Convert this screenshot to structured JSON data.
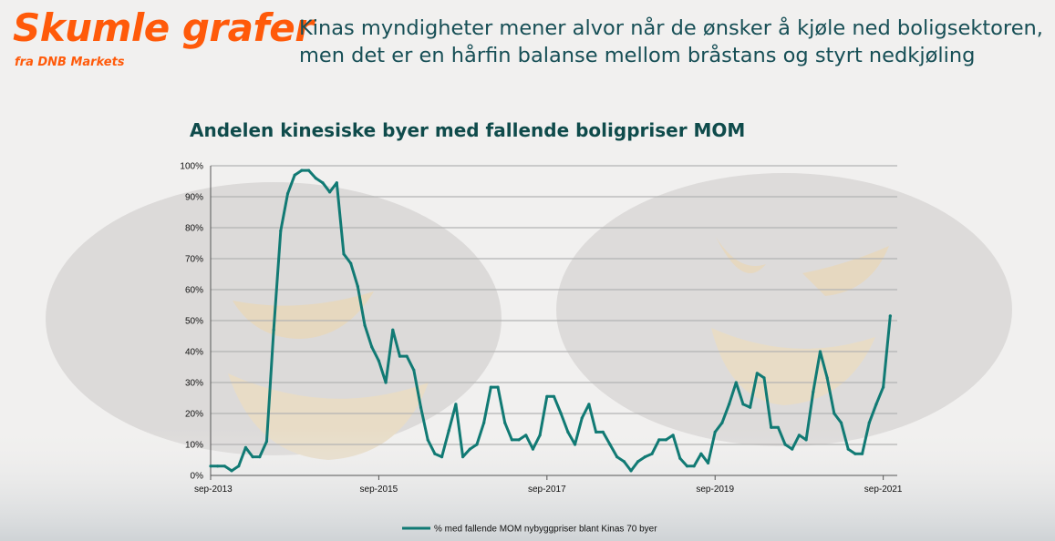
{
  "brand": {
    "title": "Skumle grafer",
    "subtitle": "fra DNB Markets",
    "color": "#ff5a0a"
  },
  "headline": "Kinas myndigheter mener alvor når de ønsker å kjøle ned boligsektoren, men det er en hårfin balanse mellom bråstans og styrt nedkjøling",
  "chart_data": {
    "type": "line",
    "title": "Andelen kinesiske byer med fallende boligpriser MOM",
    "xlabel": "",
    "ylabel": "",
    "ylim": [
      0,
      100
    ],
    "y_ticks": [
      "0%",
      "10%",
      "20%",
      "30%",
      "40%",
      "50%",
      "60%",
      "70%",
      "80%",
      "90%",
      "100%"
    ],
    "x_ticks": [
      "sep-2013",
      "sep-2015",
      "sep-2017",
      "sep-2019",
      "sep-2021"
    ],
    "x_start": "2013-09",
    "grid": true,
    "legend_position": "bottom",
    "series": [
      {
        "name": "% med fallende MOM nybyggpriser blant Kinas 70 byer",
        "color": "#117a74",
        "values": [
          3,
          3,
          3,
          1.5,
          3,
          9,
          6,
          6,
          11,
          47,
          79,
          91,
          97,
          98.5,
          98.5,
          96,
          94.5,
          91.5,
          94.5,
          71.5,
          68.5,
          61,
          48.5,
          41.5,
          37,
          30,
          47,
          38.5,
          38.5,
          34,
          22,
          11.5,
          7,
          6,
          14.5,
          23,
          6,
          8.5,
          10,
          17,
          28.5,
          28.5,
          17,
          11.5,
          11.5,
          13,
          8.5,
          13,
          25.5,
          25.5,
          20,
          14,
          10,
          18.5,
          23,
          14,
          14,
          10,
          6,
          4.5,
          1.5,
          4.5,
          6,
          7,
          11.5,
          11.5,
          13,
          5.5,
          3,
          3,
          7,
          4,
          14,
          17,
          23,
          30,
          23,
          22,
          33,
          31.5,
          15.5,
          15.5,
          10,
          8.5,
          13,
          11.5,
          27,
          40,
          31.5,
          20,
          17,
          8.5,
          7,
          7,
          17,
          23,
          28.5,
          51.5
        ]
      }
    ]
  }
}
